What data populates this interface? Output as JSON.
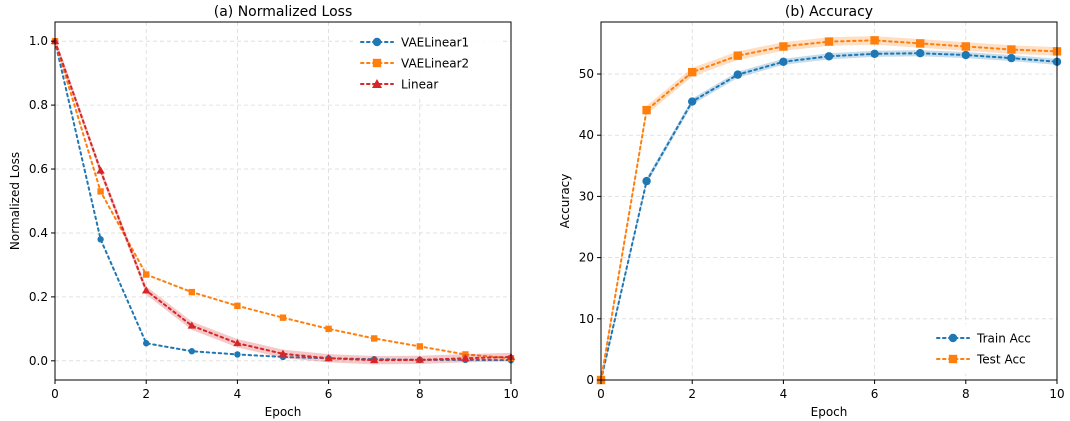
{
  "chart_data": [
    {
      "type": "line",
      "title": "(a) Normalized Loss",
      "xlabel": "Epoch",
      "ylabel": "Normalized Loss",
      "xlim": [
        0,
        10
      ],
      "ylim": [
        -0.06,
        1.06
      ],
      "xticks": [
        0,
        2,
        4,
        6,
        8,
        10
      ],
      "yticks": [
        0.0,
        0.2,
        0.4,
        0.6,
        0.8,
        1.0
      ],
      "grid": true,
      "legend_position": "top-right",
      "x": [
        0,
        1,
        2,
        3,
        4,
        5,
        6,
        7,
        8,
        9,
        10
      ],
      "series": [
        {
          "name": "VAELinear1",
          "color": "#1f77b4",
          "marker": "circle",
          "values": [
            1.0,
            0.38,
            0.055,
            0.03,
            0.02,
            0.012,
            0.008,
            0.005,
            0.003,
            0.003,
            0.002
          ]
        },
        {
          "name": "VAELinear2",
          "color": "#ff7f0e",
          "marker": "square",
          "values": [
            1.0,
            0.53,
            0.27,
            0.215,
            0.172,
            0.135,
            0.1,
            0.07,
            0.045,
            0.02,
            0.008
          ]
        },
        {
          "name": "Linear",
          "color": "#d62728",
          "marker": "triangle",
          "values": [
            1.0,
            0.595,
            0.22,
            0.11,
            0.055,
            0.022,
            0.008,
            0.002,
            0.003,
            0.008,
            0.012
          ],
          "band": 0.013
        }
      ]
    },
    {
      "type": "line",
      "title": "(b) Accuracy",
      "xlabel": "Epoch",
      "ylabel": "Accuracy",
      "xlim": [
        0,
        10
      ],
      "ylim": [
        0,
        58.5
      ],
      "xticks": [
        0,
        2,
        4,
        6,
        8,
        10
      ],
      "yticks": [
        0,
        10,
        20,
        30,
        40,
        50
      ],
      "grid": true,
      "legend_position": "bottom-right",
      "x": [
        0,
        1,
        2,
        3,
        4,
        5,
        6,
        7,
        8,
        9,
        10
      ],
      "series": [
        {
          "name": "Train Acc",
          "color": "#1f77b4",
          "marker": "circle",
          "values": [
            0,
            32.5,
            45.5,
            49.9,
            52.0,
            52.9,
            53.3,
            53.4,
            53.1,
            52.6,
            52.0
          ],
          "band": 0.5
        },
        {
          "name": "Test Acc",
          "color": "#ff7f0e",
          "marker": "square",
          "values": [
            0,
            44.1,
            50.3,
            53.0,
            54.5,
            55.3,
            55.5,
            55.0,
            54.5,
            54.0,
            53.7
          ],
          "band": 0.7
        }
      ]
    }
  ]
}
